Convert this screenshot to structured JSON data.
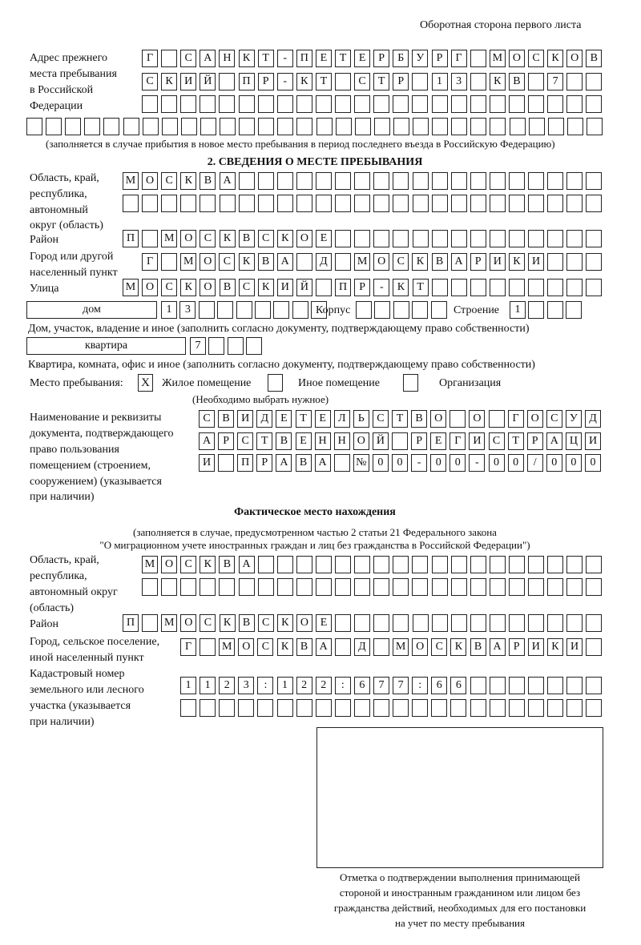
{
  "header": {
    "title": "Оборотная сторона первого листа"
  },
  "previous_address": {
    "label": [
      "Адрес прежнего",
      "места пребывания",
      "в Российской",
      "Федерации"
    ],
    "rows": [
      [
        "Г",
        "",
        "С",
        "А",
        "Н",
        "К",
        "Т",
        "-",
        "П",
        "Е",
        "Т",
        "Е",
        "Р",
        "Б",
        "У",
        "Р",
        "Г",
        "",
        "М",
        "О",
        "С",
        "К",
        "О",
        "В"
      ],
      [
        "С",
        "К",
        "И",
        "Й",
        "",
        "П",
        "Р",
        "-",
        "К",
        "Т",
        "",
        "С",
        "Т",
        "Р",
        "",
        "1",
        "3",
        "",
        "К",
        "В",
        "",
        "7",
        "",
        ""
      ],
      [
        "",
        "",
        "",
        "",
        "",
        "",
        "",
        "",
        "",
        "",
        "",
        "",
        "",
        "",
        "",
        "",
        "",
        "",
        "",
        "",
        "",
        "",
        "",
        ""
      ],
      [
        "",
        "",
        "",
        "",
        "",
        "",
        "",
        "",
        "",
        "",
        "",
        "",
        "",
        "",
        "",
        "",
        "",
        "",
        "",
        "",
        "",
        "",
        "",
        "",
        "",
        "",
        "",
        "",
        "",
        ""
      ]
    ],
    "note": "(заполняется в случае прибытия в новое место пребывания в период последнего въезда в Российскую Федерацию)"
  },
  "section2": {
    "heading": "2. СВЕДЕНИЯ О МЕСТЕ ПРЕБЫВАНИЯ",
    "region_label": [
      "Область, край,",
      "республика,",
      "автономный",
      "округ (область)"
    ],
    "region_rows": [
      [
        "М",
        "О",
        "С",
        "К",
        "В",
        "А",
        "",
        "",
        "",
        "",
        "",
        "",
        "",
        "",
        "",
        "",
        "",
        "",
        "",
        "",
        "",
        "",
        "",
        "",
        ""
      ],
      [
        "",
        "",
        "",
        "",
        "",
        "",
        "",
        "",
        "",
        "",
        "",
        "",
        "",
        "",
        "",
        "",
        "",
        "",
        "",
        "",
        "",
        "",
        "",
        "",
        ""
      ]
    ],
    "district_label": "Район",
    "district": [
      "П",
      "",
      "М",
      "О",
      "С",
      "К",
      "В",
      "С",
      "К",
      "О",
      "Е",
      "",
      "",
      "",
      "",
      "",
      "",
      "",
      "",
      "",
      "",
      "",
      "",
      "",
      ""
    ],
    "city_label": [
      "Город или другой",
      "населенный пункт"
    ],
    "city": [
      "Г",
      "",
      "М",
      "О",
      "С",
      "К",
      "В",
      "А",
      "",
      "Д",
      "",
      "М",
      "О",
      "С",
      "К",
      "В",
      "А",
      "Р",
      "И",
      "К",
      "И",
      "",
      "",
      ""
    ],
    "street_label": "Улица",
    "street": [
      "М",
      "О",
      "С",
      "К",
      "О",
      "В",
      "С",
      "К",
      "И",
      "Й",
      "",
      "П",
      "Р",
      "-",
      "К",
      "Т",
      "",
      "",
      "",
      "",
      "",
      "",
      "",
      "",
      ""
    ],
    "house_type": "дом",
    "house": [
      "1",
      "3",
      "",
      "",
      "",
      "",
      "",
      "",
      ""
    ],
    "korpus_label": "Корпус",
    "korpus": [
      "",
      "",
      "",
      "",
      ""
    ],
    "building_label": "Строение",
    "building": [
      "1",
      "",
      "",
      ""
    ],
    "house_note": "Дом, участок, владение и иное (заполнить согласно документу, подтверждающему право собственности)",
    "apt_type": "квартира",
    "apt": [
      "7",
      "",
      "",
      ""
    ],
    "apt_note": "Квартира, комната, офис и иное (заполнить согласно документу, подтверждающему право собственности)",
    "place_label": "Место пребывания:",
    "place_options": [
      {
        "label": "Жилое помещение",
        "mark": "X"
      },
      {
        "label": "Иное помещение",
        "mark": ""
      },
      {
        "label": "Организация",
        "mark": ""
      }
    ],
    "place_note": "(Необходимо выбрать нужное)",
    "doc_label": [
      "Наименование и реквизиты",
      "документа, подтверждающего",
      "право пользования",
      "помещением (строением,",
      "сооружением) (указывается",
      "при наличии)"
    ],
    "doc_rows": [
      [
        "С",
        "В",
        "И",
        "Д",
        "Е",
        "Т",
        "Е",
        "Л",
        "Ь",
        "С",
        "Т",
        "В",
        "О",
        "",
        "О",
        "",
        "Г",
        "О",
        "С",
        "У",
        "Д"
      ],
      [
        "А",
        "Р",
        "С",
        "Т",
        "В",
        "Е",
        "Н",
        "Н",
        "О",
        "Й",
        "",
        "Р",
        "Е",
        "Г",
        "И",
        "С",
        "Т",
        "Р",
        "А",
        "Ц",
        "И"
      ],
      [
        "И",
        "",
        "П",
        "Р",
        "А",
        "В",
        "А",
        "",
        "№",
        "0",
        "0",
        "-",
        "0",
        "0",
        "-",
        "0",
        "0",
        "/",
        "0",
        "0",
        "0"
      ]
    ]
  },
  "actual": {
    "heading": "Фактическое место нахождения",
    "note": [
      "(заполняется в случае, предусмотренном частью 2 статьи 21 Федерального закона",
      "\"О миграционном учете иностранных граждан и лиц без гражданства в Российской Федерации\")"
    ],
    "region_label": [
      "Область, край,",
      "республика,",
      "автономный округ",
      "(область)"
    ],
    "region_rows": [
      [
        "М",
        "О",
        "С",
        "К",
        "В",
        "А",
        "",
        "",
        "",
        "",
        "",
        "",
        "",
        "",
        "",
        "",
        "",
        "",
        "",
        "",
        "",
        "",
        "",
        ""
      ],
      [
        "",
        "",
        "",
        "",
        "",
        "",
        "",
        "",
        "",
        "",
        "",
        "",
        "",
        "",
        "",
        "",
        "",
        "",
        "",
        "",
        "",
        "",
        "",
        ""
      ]
    ],
    "district_label": "Район",
    "district": [
      "П",
      "",
      "М",
      "О",
      "С",
      "К",
      "В",
      "С",
      "К",
      "О",
      "Е",
      "",
      "",
      "",
      "",
      "",
      "",
      "",
      "",
      "",
      "",
      "",
      "",
      "",
      ""
    ],
    "city_label": [
      "Город, сельское поселение,",
      "иной населенный пункт"
    ],
    "city": [
      "Г",
      "",
      "М",
      "О",
      "С",
      "К",
      "В",
      "А",
      "",
      "Д",
      "",
      "М",
      "О",
      "С",
      "К",
      "В",
      "А",
      "Р",
      "И",
      "К",
      "И",
      ""
    ],
    "cadastre_label": [
      "Кадастровый номер",
      "земельного или лесного",
      "участка (указывается",
      "при наличии)"
    ],
    "cadastre_rows": [
      [
        "1",
        "1",
        "2",
        "3",
        ":",
        "1",
        "2",
        "2",
        ":",
        "6",
        "7",
        "7",
        ":",
        "6",
        "6",
        "",
        "",
        "",
        "",
        "",
        "",
        ""
      ],
      [
        "",
        "",
        "",
        "",
        "",
        "",
        "",
        "",
        "",
        "",
        "",
        "",
        "",
        "",
        "",
        "",
        "",
        "",
        "",
        "",
        "",
        ""
      ]
    ]
  },
  "stamp_caption": [
    "Отметка о подтверждении выполнения принимающей",
    "стороной и иностранным гражданином или лицом без",
    "гражданства действий, необходимых для его постановки",
    "на учет по месту пребывания"
  ]
}
